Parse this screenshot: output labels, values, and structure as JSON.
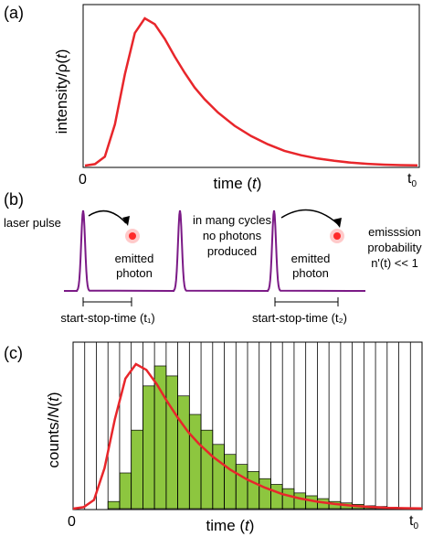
{
  "panel_a": {
    "label": "(a)",
    "ylabel_main": "intensity/ρ(",
    "ylabel_var": "t",
    "ylabel_end": ")",
    "xlabel_main": "time (",
    "xlabel_var": "t",
    "xlabel_end": ")",
    "origin": "0",
    "t0_main": "t",
    "t0_sub": "0",
    "curve_color": "#e8262b"
  },
  "panel_b": {
    "label": "(b)",
    "laser_pulse": "laser pulse",
    "emitted_photon_1_line1": "emitted",
    "emitted_photon_1_line2": "photon",
    "cycles_line1": "in mang cycles",
    "cycles_line2": "no photons",
    "cycles_line3": "produced",
    "emitted_photon_2_line1": "emitted",
    "emitted_photon_2_line2": "photon",
    "prob_line1": "emisssion",
    "prob_line2": "probability",
    "prob_line3": "n'(t) << 1",
    "start_stop_1": "start-stop-time (t₁)",
    "start_stop_2": "start-stop-time (t₂)",
    "pulse_color": "#7b1a86",
    "photon_color": "#ff2a2a"
  },
  "panel_c": {
    "label": "(c)",
    "ylabel_main": "counts/",
    "ylabel_var": "N",
    "ylabel_mid": "(",
    "ylabel_var2": "t",
    "ylabel_end": ")",
    "xlabel_main": "time (",
    "xlabel_var": "t",
    "xlabel_end": ")",
    "origin": "0",
    "t0_main": "t",
    "t0_sub": "0",
    "bar_color": "#8dc63f",
    "curve_color": "#e8262b"
  },
  "chart_data": [
    {
      "type": "line",
      "panel": "a",
      "x": [
        0,
        0.03,
        0.06,
        0.09,
        0.12,
        0.15,
        0.18,
        0.21,
        0.24,
        0.27,
        0.3,
        0.33,
        0.36,
        0.4,
        0.45,
        0.5,
        0.55,
        0.6,
        0.65,
        0.7,
        0.75,
        0.8,
        0.85,
        0.9,
        0.95,
        1.0
      ],
      "y": [
        0,
        0.01,
        0.06,
        0.28,
        0.62,
        0.9,
        1.0,
        0.96,
        0.86,
        0.74,
        0.63,
        0.53,
        0.45,
        0.36,
        0.27,
        0.2,
        0.145,
        0.1,
        0.07,
        0.048,
        0.032,
        0.02,
        0.012,
        0.006,
        0.003,
        0.001
      ]
    },
    {
      "type": "bar",
      "panel": "c",
      "values": [
        0,
        0,
        0,
        0.05,
        0.25,
        0.55,
        0.86,
        1.0,
        0.93,
        0.79,
        0.66,
        0.55,
        0.45,
        0.38,
        0.31,
        0.26,
        0.21,
        0.17,
        0.14,
        0.11,
        0.09,
        0.07,
        0.05,
        0.04,
        0.03,
        0.02,
        0.015,
        0.01,
        0.005,
        0.003
      ]
    }
  ]
}
